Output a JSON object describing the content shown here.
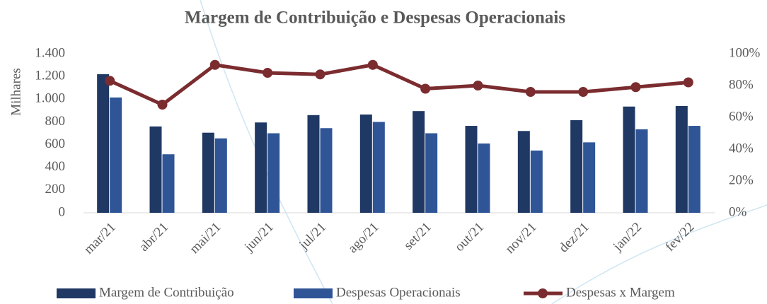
{
  "chart_data": {
    "type": "bar_line",
    "title": "Margem de Contribuição e Despesas Operacionais",
    "y_label": "Milhares",
    "categories": [
      "mar/21",
      "abr/21",
      "mai/21",
      "jun/21",
      "jul/21",
      "ago/21",
      "set/21",
      "out/21",
      "nov/21",
      "dez/21",
      "jan/22",
      "fev/22"
    ],
    "series": [
      {
        "name": "Margem de Contribuição",
        "color": "#1f3864",
        "type": "bar",
        "values": [
          1220,
          760,
          705,
          795,
          860,
          865,
          895,
          765,
          720,
          815,
          935,
          940
        ]
      },
      {
        "name": "Despesas Operacionais",
        "color": "#2f5597",
        "type": "bar",
        "values": [
          1015,
          515,
          655,
          700,
          745,
          800,
          700,
          610,
          548,
          620,
          735,
          765
        ]
      },
      {
        "name": "Despesas x Margem",
        "color": "#7b2c2f",
        "type": "line",
        "axis": "y2",
        "values": [
          83,
          68,
          93,
          88,
          87,
          93,
          78,
          80,
          76,
          76,
          79,
          82
        ]
      }
    ],
    "ylim": [
      0,
      1400
    ],
    "yticks": [
      0,
      200,
      400,
      600,
      800,
      {
        "value": 1000,
        "label": "1.000"
      },
      {
        "value": 1200,
        "label": "1.200"
      },
      {
        "value": 1400,
        "label": "1.400"
      }
    ],
    "y2lim": [
      0,
      100
    ],
    "y2ticks": [
      {
        "value": 0,
        "label": "0%"
      },
      {
        "value": 20,
        "label": "20%"
      },
      {
        "value": 40,
        "label": "40%"
      },
      {
        "value": 60,
        "label": "60%"
      },
      {
        "value": 80,
        "label": "80%"
      },
      {
        "value": 100,
        "label": "100%"
      }
    ],
    "legend": "bottom"
  }
}
